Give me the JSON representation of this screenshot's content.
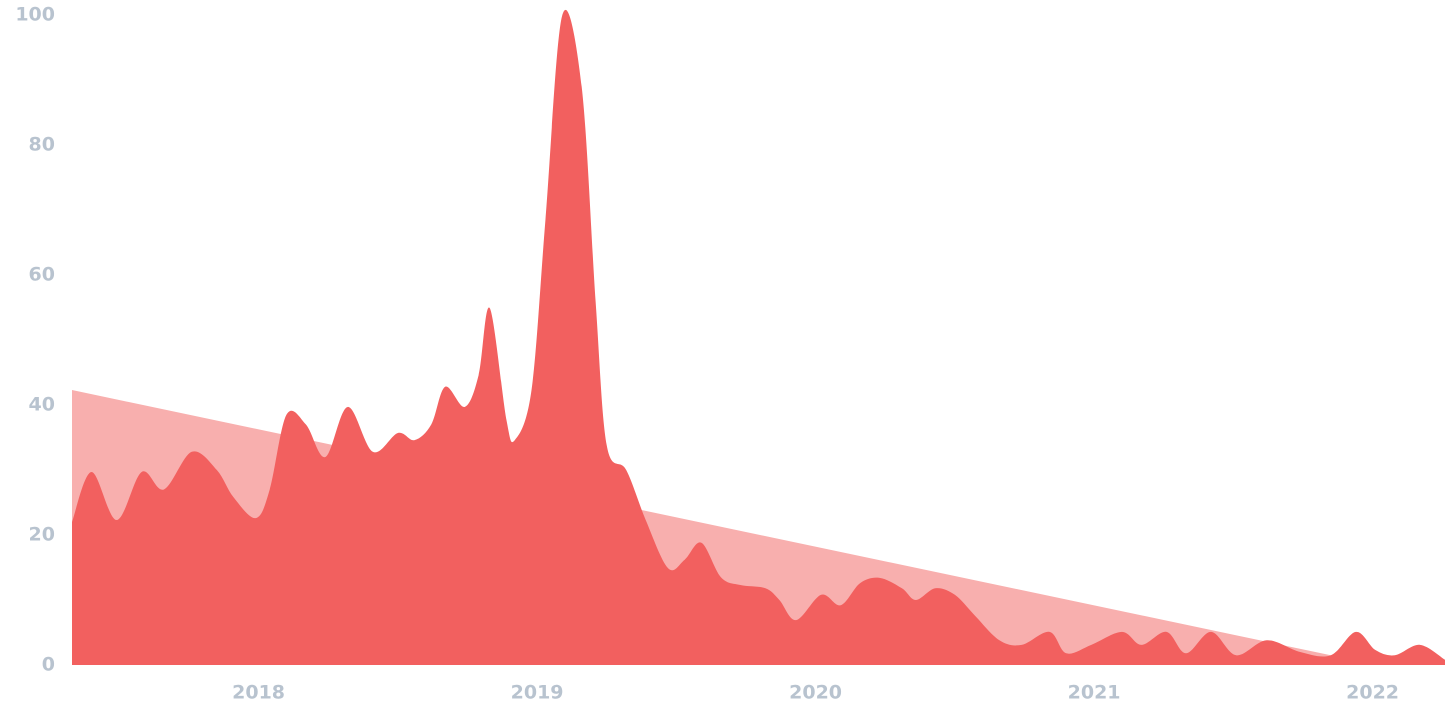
{
  "chart_data": {
    "type": "area",
    "xlim": [
      2017.33,
      2022.26
    ],
    "xticks": [
      2018,
      2019,
      2020,
      2021,
      2022
    ],
    "ylim": [
      0,
      100
    ],
    "yticks": [
      0,
      20,
      40,
      60,
      80,
      100
    ],
    "series": [
      {
        "color": "#f8afae",
        "x": [
          2017.33,
          2021.85
        ],
        "values": [
          42.3,
          1.5
        ]
      },
      {
        "color": "#f2605f",
        "x": [
          2017.33,
          2017.4,
          2017.49,
          2017.58,
          2017.66,
          2017.76,
          2017.85,
          2017.91,
          2017.99,
          2018.04,
          2018.1,
          2018.17,
          2018.24,
          2018.32,
          2018.41,
          2018.5,
          2018.56,
          2018.62,
          2018.67,
          2018.74,
          2018.79,
          2018.83,
          2018.89,
          2018.92,
          2018.98,
          2019.03,
          2019.09,
          2019.16,
          2019.21,
          2019.25,
          2019.32,
          2019.39,
          2019.47,
          2019.53,
          2019.59,
          2019.66,
          2019.73,
          2019.82,
          2019.87,
          2019.93,
          2020.02,
          2020.09,
          2020.16,
          2020.23,
          2020.31,
          2020.36,
          2020.43,
          2020.5,
          2020.57,
          2020.66,
          2020.74,
          2020.84,
          2020.9,
          2020.99,
          2021.1,
          2021.17,
          2021.26,
          2021.33,
          2021.42,
          2021.51,
          2021.62,
          2021.74,
          2021.85,
          2021.94,
          2022.01,
          2022.08,
          2022.17,
          2022.26
        ],
        "values": [
          22,
          29.7,
          22.3,
          29.7,
          27,
          32.8,
          30,
          25.8,
          22.6,
          27,
          38.5,
          37,
          32,
          39.7,
          32.8,
          35.7,
          34.6,
          37,
          42.8,
          39.7,
          44.6,
          54.9,
          37.7,
          34.6,
          42.3,
          68.5,
          99.9,
          89,
          56,
          33.8,
          30,
          22.3,
          14.9,
          16.2,
          18.8,
          13.5,
          12.3,
          11.8,
          10,
          6.9,
          10.8,
          9.2,
          12.6,
          13.4,
          11.8,
          10,
          11.8,
          10.8,
          7.7,
          3.8,
          3.1,
          5.1,
          1.8,
          3.1,
          5.1,
          3.1,
          5.1,
          1.8,
          5.1,
          1.5,
          3.8,
          2,
          1.5,
          5.1,
          2.3,
          1.5,
          3.1,
          0.8
        ]
      }
    ]
  }
}
